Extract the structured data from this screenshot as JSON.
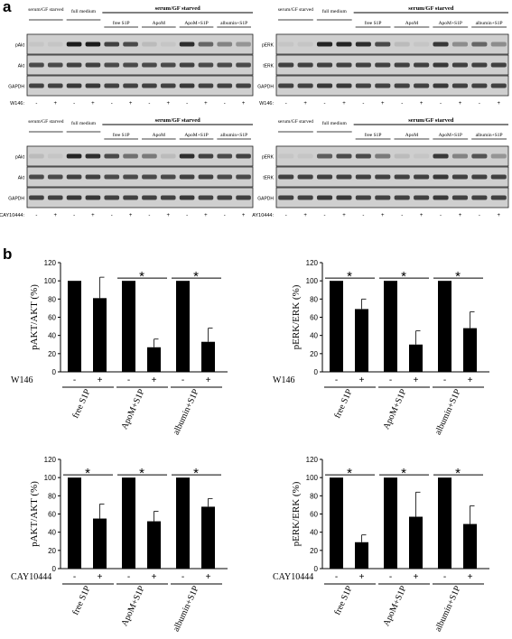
{
  "panel_labels": {
    "a": "a",
    "b": "b"
  },
  "blots": [
    {
      "id": "blot-akt-w146",
      "group_labels": [
        "serum/GF starved",
        "full medium"
      ],
      "bracket_label": "serum/GF starved",
      "treatments": [
        "free S1P",
        "ApoM",
        "ApoM+S1P",
        "albumin+S1P"
      ],
      "rows": [
        "pAkt",
        "Akt",
        "GAPDH"
      ],
      "inhibitor": "W146:",
      "signs": [
        "-",
        "+",
        "-",
        "+",
        "-",
        "+",
        "-",
        "+",
        "-",
        "+",
        "-",
        "+"
      ],
      "intensities": [
        [
          0.05,
          0.05,
          0.95,
          0.95,
          0.75,
          0.7,
          0.1,
          0.05,
          0.85,
          0.55,
          0.4,
          0.3
        ],
        [
          0.7,
          0.7,
          0.75,
          0.75,
          0.7,
          0.7,
          0.7,
          0.7,
          0.75,
          0.7,
          0.7,
          0.7
        ],
        [
          0.75,
          0.75,
          0.8,
          0.8,
          0.75,
          0.75,
          0.75,
          0.75,
          0.8,
          0.75,
          0.75,
          0.75
        ]
      ]
    },
    {
      "id": "blot-erk-w146",
      "group_labels": [
        "serum/GF starved",
        "full medium"
      ],
      "bracket_label": "serum/GF starved",
      "treatments": [
        "free S1P",
        "ApoM",
        "ApoM+S1P",
        "albumin+S1P"
      ],
      "rows": [
        "pERK",
        "tERK",
        "GAPDH"
      ],
      "inhibitor": "W146:",
      "signs": [
        "-",
        "+",
        "-",
        "+",
        "-",
        "+",
        "-",
        "+",
        "-",
        "+",
        "-",
        "+"
      ],
      "intensities": [
        [
          0.05,
          0.05,
          0.9,
          0.9,
          0.85,
          0.7,
          0.1,
          0.05,
          0.8,
          0.35,
          0.55,
          0.35
        ],
        [
          0.75,
          0.75,
          0.75,
          0.75,
          0.75,
          0.75,
          0.75,
          0.75,
          0.8,
          0.75,
          0.75,
          0.75
        ],
        [
          0.75,
          0.75,
          0.8,
          0.8,
          0.75,
          0.75,
          0.75,
          0.75,
          0.8,
          0.75,
          0.75,
          0.75
        ]
      ]
    },
    {
      "id": "blot-akt-cay",
      "group_labels": [
        "serum/GF starved",
        "full medium"
      ],
      "bracket_label": "serum/GF starved",
      "treatments": [
        "free S1P",
        "ApoM",
        "ApoM+S1P",
        "albumin+S1P"
      ],
      "rows": [
        "pAkt",
        "Akt",
        "GAPDH"
      ],
      "inhibitor": "CAY10444:",
      "signs": [
        "-",
        "+",
        "-",
        "+",
        "-",
        "+",
        "-",
        "+",
        "-",
        "+",
        "-",
        "+"
      ],
      "intensities": [
        [
          0.1,
          0.05,
          0.9,
          0.85,
          0.7,
          0.5,
          0.45,
          0.1,
          0.85,
          0.75,
          0.7,
          0.75
        ],
        [
          0.7,
          0.7,
          0.75,
          0.75,
          0.7,
          0.7,
          0.7,
          0.7,
          0.75,
          0.75,
          0.7,
          0.7
        ],
        [
          0.75,
          0.75,
          0.8,
          0.8,
          0.75,
          0.75,
          0.75,
          0.75,
          0.8,
          0.75,
          0.75,
          0.75
        ]
      ]
    },
    {
      "id": "blot-erk-cay",
      "group_labels": [
        "serum/GF starved",
        "full medium"
      ],
      "bracket_label": "serum/GF starved",
      "treatments": [
        "free S1P",
        "ApoM",
        "ApoM+S1P",
        "albumin+S1P"
      ],
      "rows": [
        "pERK",
        "tERK",
        "GAPDH"
      ],
      "inhibitor": "AY10444:",
      "signs": [
        "-",
        "+",
        "-",
        "+",
        "-",
        "+",
        "-",
        "+",
        "-",
        "+",
        "-",
        "+"
      ],
      "intensities": [
        [
          0.05,
          0.05,
          0.6,
          0.7,
          0.7,
          0.45,
          0.1,
          0.05,
          0.8,
          0.4,
          0.65,
          0.3
        ],
        [
          0.75,
          0.75,
          0.75,
          0.75,
          0.75,
          0.75,
          0.75,
          0.75,
          0.8,
          0.75,
          0.75,
          0.75
        ],
        [
          0.75,
          0.75,
          0.8,
          0.8,
          0.75,
          0.75,
          0.75,
          0.75,
          0.8,
          0.75,
          0.75,
          0.75
        ]
      ]
    }
  ],
  "chart_data": [
    {
      "type": "bar",
      "id": "chart-pakt-w146",
      "ylabel": "pAKT/AKT (%)",
      "ylim": [
        0,
        120
      ],
      "yticks": [
        0,
        20,
        40,
        60,
        80,
        100,
        120
      ],
      "inhibitor": "W146",
      "sign_labels": [
        "-",
        "+"
      ],
      "categories": [
        "free S1P",
        "ApoM+S1P",
        "albumin+S1P"
      ],
      "series": [
        {
          "values": [
            100,
            100,
            100
          ]
        },
        {
          "values": [
            81,
            27,
            33
          ]
        }
      ],
      "errors": [
        [
          0,
          0,
          0
        ],
        [
          23,
          9,
          15
        ]
      ],
      "significance": [
        "",
        "*",
        "*"
      ]
    },
    {
      "type": "bar",
      "id": "chart-perk-w146",
      "ylabel": "pERK/ERK (%)",
      "ylim": [
        0,
        120
      ],
      "yticks": [
        0,
        20,
        40,
        60,
        80,
        100,
        120
      ],
      "inhibitor": "W146",
      "sign_labels": [
        "-",
        "+"
      ],
      "categories": [
        "free S1P",
        "ApoM+S1P",
        "albumin+S1P"
      ],
      "series": [
        {
          "values": [
            100,
            100,
            100
          ]
        },
        {
          "values": [
            69,
            30,
            48
          ]
        }
      ],
      "errors": [
        [
          0,
          0,
          0
        ],
        [
          11,
          15,
          18
        ]
      ],
      "significance": [
        "*",
        "*",
        "*"
      ]
    },
    {
      "type": "bar",
      "id": "chart-pakt-cay",
      "ylabel": "pAKT/AKT (%)",
      "ylim": [
        0,
        120
      ],
      "yticks": [
        0,
        20,
        40,
        60,
        80,
        100,
        120
      ],
      "inhibitor": "CAY10444",
      "sign_labels": [
        "-",
        "+"
      ],
      "categories": [
        "free S1P",
        "ApoM+S1P",
        "albumin+S1P"
      ],
      "series": [
        {
          "values": [
            100,
            100,
            100
          ]
        },
        {
          "values": [
            55,
            52,
            68
          ]
        }
      ],
      "errors": [
        [
          0,
          0,
          0
        ],
        [
          16,
          11,
          9
        ]
      ],
      "significance": [
        "*",
        "*",
        "*"
      ]
    },
    {
      "type": "bar",
      "id": "chart-perk-cay",
      "ylabel": "pERK/ERK (%)",
      "ylim": [
        0,
        120
      ],
      "yticks": [
        0,
        20,
        40,
        60,
        80,
        100,
        120
      ],
      "inhibitor": "CAY10444",
      "sign_labels": [
        "-",
        "+"
      ],
      "categories": [
        "free S1P",
        "ApoM+S1P",
        "albumin+S1P"
      ],
      "series": [
        {
          "values": [
            100,
            100,
            100
          ]
        },
        {
          "values": [
            29,
            57,
            49
          ]
        }
      ],
      "errors": [
        [
          0,
          0,
          0
        ],
        [
          8,
          27,
          20
        ]
      ],
      "significance": [
        "*",
        "*",
        "*"
      ]
    }
  ]
}
